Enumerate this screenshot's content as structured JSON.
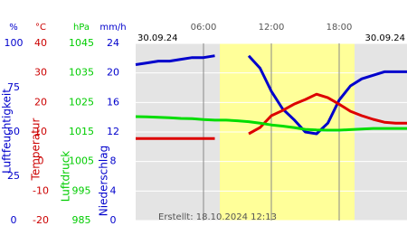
{
  "chart_data": {
    "type": "line",
    "date_left": "30.09.24",
    "date_right": "30.09.24",
    "footer": "Erstellt: 18.10.2024 12:13",
    "xlim": [
      0,
      24
    ],
    "xticks": [
      {
        "value": 6,
        "label": "06:00"
      },
      {
        "value": 12,
        "label": "12:00"
      },
      {
        "value": 18,
        "label": "18:00"
      }
    ],
    "daylight": [
      7.44,
      19.36
    ],
    "axes": [
      {
        "unit": "%",
        "title": "Luftfeuchtigkeit",
        "color": "#0000cc",
        "lim": [
          0,
          100
        ],
        "ticks": [
          0,
          25,
          50,
          75,
          100
        ]
      },
      {
        "unit": "°C",
        "title": "Temperatur",
        "color": "#cc0000",
        "lim": [
          -20,
          40
        ],
        "ticks": [
          -20,
          -10,
          0,
          10,
          20,
          30,
          40
        ]
      },
      {
        "unit": "hPa",
        "title": "Luftdruck",
        "color": "#00cc00",
        "lim": [
          985,
          1045
        ],
        "ticks": [
          985,
          995,
          1005,
          1015,
          1025,
          1035,
          1045
        ]
      },
      {
        "unit": "mm/h",
        "title": "Niederschlag",
        "color": "#0000cc",
        "lim": [
          0,
          24
        ],
        "ticks": [
          0,
          4,
          8,
          12,
          16,
          20,
          24
        ]
      }
    ],
    "x": [
      0,
      1,
      2,
      3,
      4,
      5,
      6,
      7,
      8,
      9,
      10,
      11,
      12,
      13,
      14,
      15,
      16,
      17,
      18,
      19,
      20,
      21,
      22,
      23,
      24
    ],
    "series": [
      {
        "axis": 0,
        "color": "#0000cc",
        "values": [
          88,
          89,
          90,
          90,
          91,
          92,
          92,
          93,
          null,
          null,
          93,
          86,
          73,
          63,
          57,
          50,
          49,
          55,
          68,
          76,
          80,
          82,
          84,
          84,
          84
        ]
      },
      {
        "axis": 1,
        "color": "#dd0000",
        "values": [
          7.8,
          7.8,
          7.8,
          7.8,
          7.8,
          7.8,
          7.8,
          7.8,
          null,
          null,
          9.4,
          11.5,
          15.5,
          17.3,
          19.4,
          21,
          22.8,
          21.6,
          19.4,
          17,
          15.5,
          14.3,
          13.3,
          13,
          13
        ]
      },
      {
        "axis": 2,
        "color": "#00dd00",
        "values": [
          1020.2,
          1020.1,
          1020,
          1019.8,
          1019.6,
          1019.5,
          1019.2,
          1019,
          1019,
          1018.8,
          1018.5,
          1018,
          1017.4,
          1017,
          1016.5,
          1015.9,
          1015.7,
          1015.6,
          1015.6,
          1015.8,
          1016,
          1016.2,
          1016.2,
          1016.2,
          1016.2
        ]
      }
    ]
  }
}
